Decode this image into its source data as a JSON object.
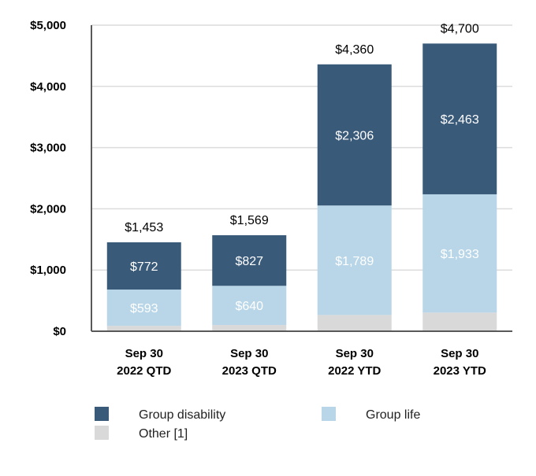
{
  "chart_data": {
    "type": "bar",
    "stacked": true,
    "categories": [
      [
        "Sep 30",
        "2022 QTD"
      ],
      [
        "Sep 30",
        "2023 QTD"
      ],
      [
        "Sep 30",
        "2022 YTD"
      ],
      [
        "Sep 30",
        "2023 YTD"
      ]
    ],
    "series": [
      {
        "name": "Other [1]",
        "values": [
          88,
          102,
          265,
          304
        ],
        "color": "#d9d9d9",
        "label_color": "#ffffff",
        "labels": [
          "",
          "",
          "",
          ""
        ]
      },
      {
        "name": "Group life",
        "values": [
          593,
          640,
          1789,
          1933
        ],
        "color": "#b8d6e8",
        "label_color": "#ffffff",
        "labels": [
          "$593",
          "$640",
          "$1,789",
          "$1,933"
        ]
      },
      {
        "name": "Group disability",
        "values": [
          772,
          827,
          2306,
          2463
        ],
        "color": "#3a5a7a",
        "label_color": "#ffffff",
        "labels": [
          "$772",
          "$827",
          "$2,306",
          "$2,463"
        ]
      }
    ],
    "totals": [
      1453,
      1569,
      4360,
      4700
    ],
    "total_labels": [
      "$1,453",
      "$1,569",
      "$4,360",
      "$4,700"
    ],
    "ylim": [
      0,
      5000
    ],
    "yticks": [
      0,
      1000,
      2000,
      3000,
      4000,
      5000
    ],
    "ytick_labels": [
      "$0",
      "$1,000",
      "$2,000",
      "$3,000",
      "$4,000",
      "$5,000"
    ],
    "grid": true,
    "title": "",
    "xlabel": "",
    "ylabel": "",
    "legend": {
      "placement": "bottom",
      "entries": [
        {
          "name": "Group disability",
          "color": "#3a5a7a"
        },
        {
          "name": "Group life",
          "color": "#b8d6e8"
        },
        {
          "name": "Other [1]",
          "color": "#d9d9d9"
        }
      ]
    },
    "gridline_color": "#dcdcdc",
    "axis_color": "#595959"
  }
}
